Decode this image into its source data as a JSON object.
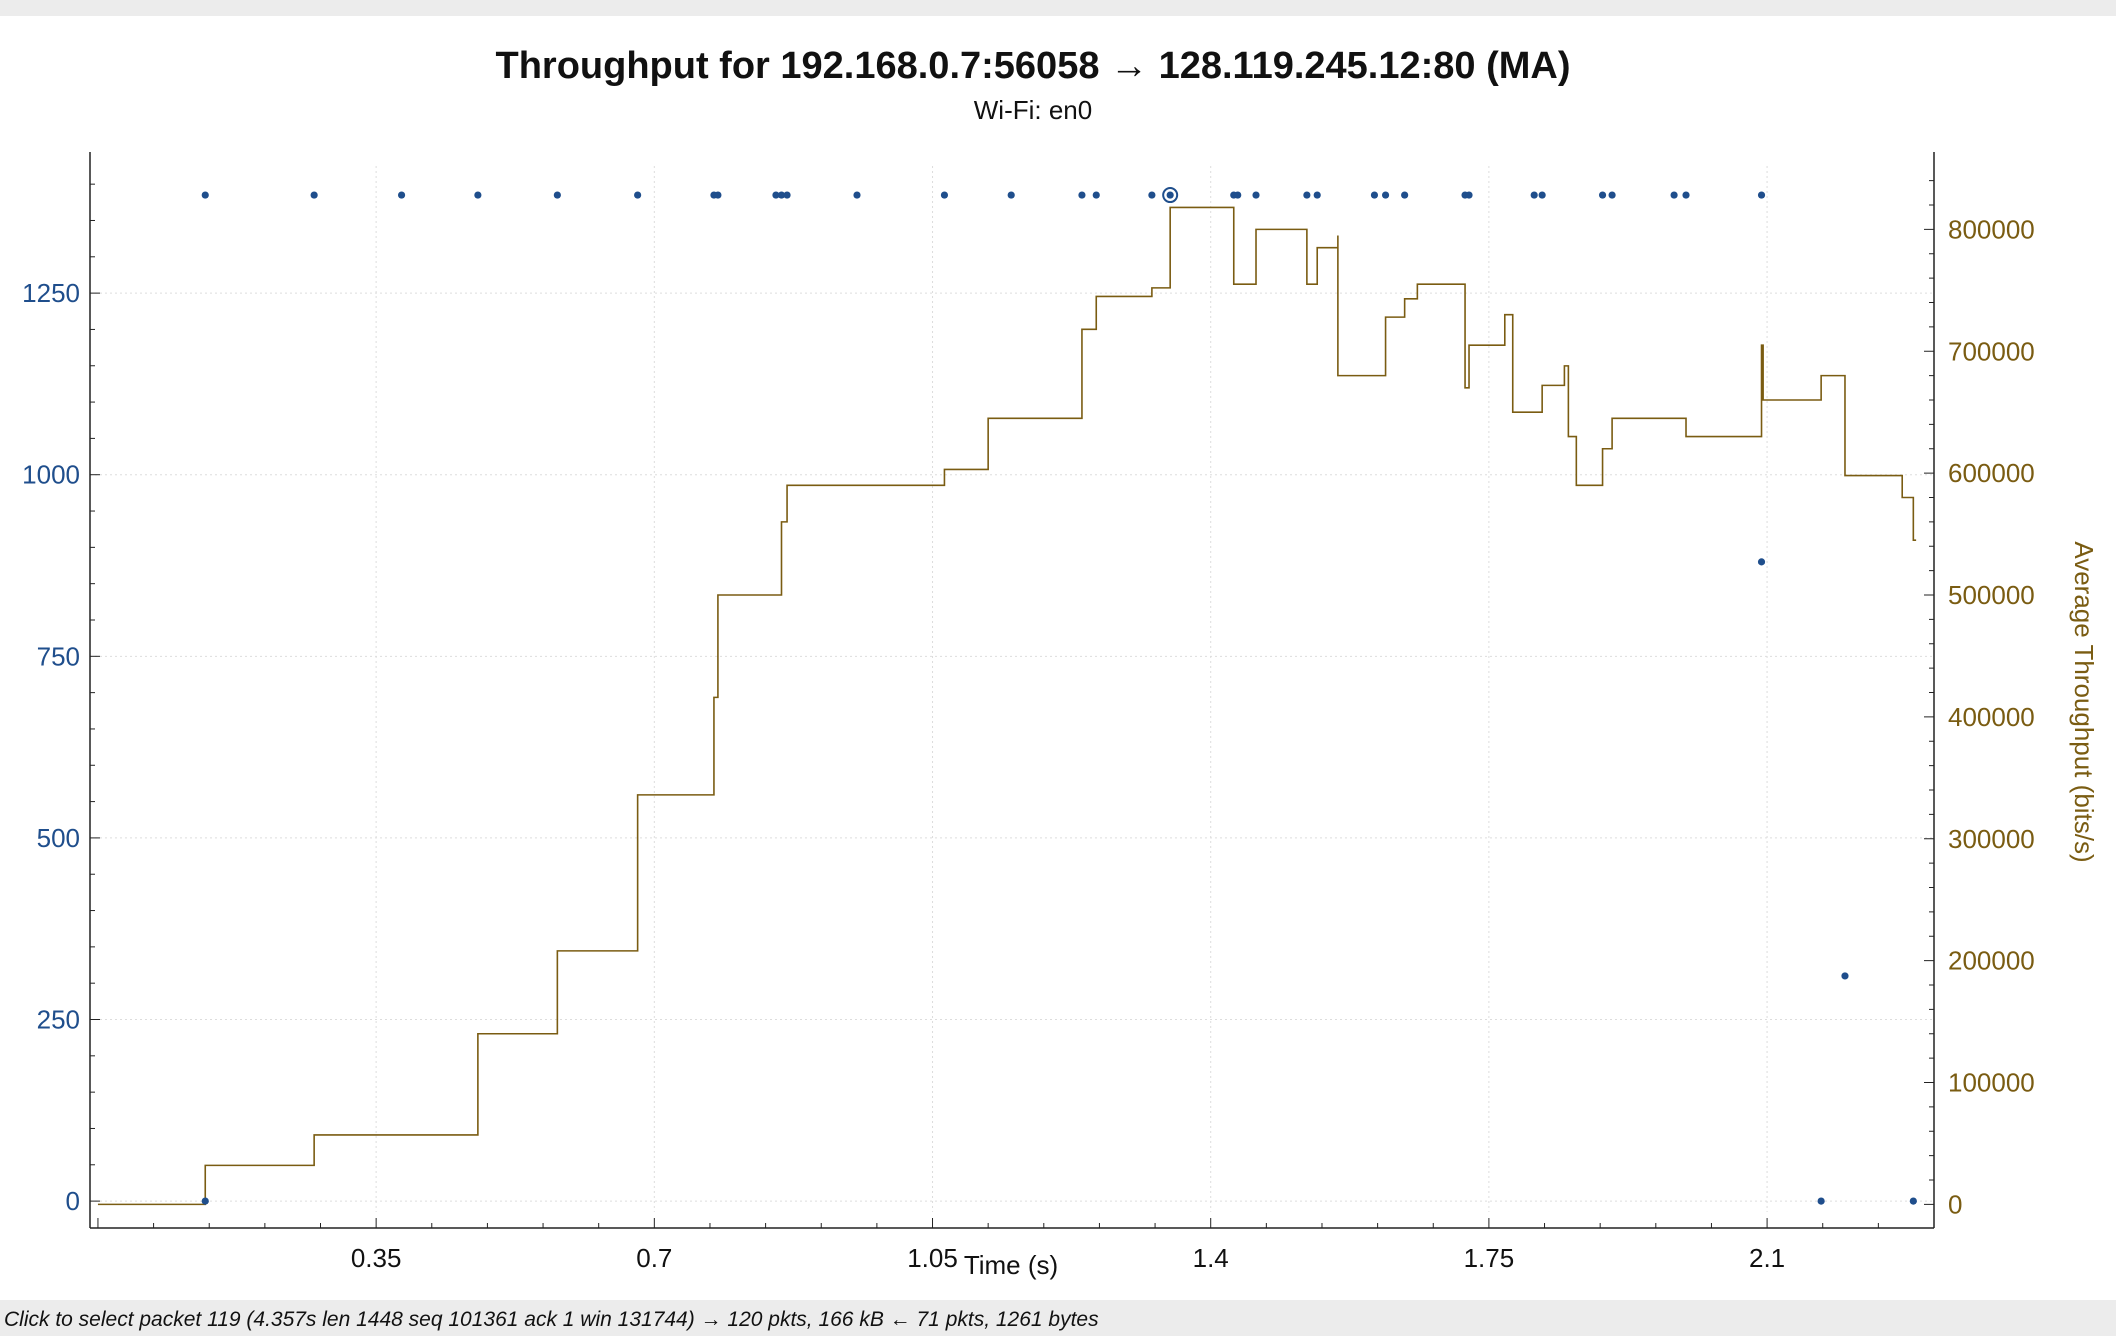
{
  "window": {
    "status_text": "Click to select packet 119 (4.357s len 1448 seq 101361 ack 1 win 131744) → 120 pkts, 166 kB ← 71 pkts, 1261 bytes"
  },
  "colors": {
    "segment_points": "#1f4e8c",
    "throughput_line": "#7a5c12",
    "left_axis_text": "#1f4e8c",
    "right_axis_text": "#7a5c12",
    "grid": "#dddddd"
  },
  "chart_data": {
    "type": "line",
    "title": "Throughput for 192.168.0.7:56058 → 128.119.245.12:80 (MA)",
    "subtitle": "Wi-Fi: en0",
    "xlabel": "Time (s)",
    "ylabel_left": "",
    "ylabel_right": "Average Throughput (bits/s)",
    "xlim": [
      -0.01,
      2.31
    ],
    "ylim_left": [
      -15,
      1425
    ],
    "ylim_right": [
      -6250,
      852000
    ],
    "x_ticks": [
      0.35,
      0.7,
      1.05,
      1.4,
      1.75,
      2.1
    ],
    "x_tick_labels": [
      "0.35",
      "0.7",
      "1.05",
      "1.4",
      "1.75",
      "2.1"
    ],
    "y_left_ticks": [
      0,
      250,
      500,
      750,
      1000,
      1250
    ],
    "y_left_tick_labels": [
      "0",
      "250",
      "500",
      "750",
      "1000",
      "1250"
    ],
    "y_right_ticks": [
      0,
      100000,
      200000,
      300000,
      400000,
      500000,
      600000,
      700000,
      800000
    ],
    "y_right_tick_labels": [
      "0",
      "100000",
      "200000",
      "300000",
      "400000",
      "500000",
      "600000",
      "700000",
      "800000"
    ],
    "grid": true,
    "series": [
      {
        "axis": "left",
        "style": "points",
        "x": [
          0.135,
          0.272,
          0.382,
          0.478,
          0.578,
          0.679,
          0.775,
          0.78,
          0.853,
          0.86,
          0.867,
          0.955,
          1.065,
          1.149,
          1.238,
          1.256,
          1.326,
          1.349,
          1.429,
          1.434,
          1.457,
          1.521,
          1.534,
          1.606,
          1.62,
          1.644,
          1.72,
          1.725,
          1.807,
          1.817,
          1.893,
          1.905,
          1.983,
          1.998,
          2.093,
          2.093,
          2.168,
          2.198,
          2.284,
          0.135
        ],
        "y": [
          1385,
          1385,
          1385,
          1385,
          1385,
          1385,
          1385,
          1385,
          1385,
          1385,
          1385,
          1385,
          1385,
          1385,
          1385,
          1385,
          1385,
          1385,
          1385,
          1385,
          1385,
          1385,
          1385,
          1385,
          1385,
          1385,
          1385,
          1385,
          1385,
          1385,
          1385,
          1385,
          1385,
          1385,
          1385,
          880,
          0,
          310,
          0,
          0
        ],
        "highlight_index": 17
      },
      {
        "axis": "right",
        "style": "step",
        "x": [
          0.0,
          0.135,
          0.272,
          0.382,
          0.478,
          0.578,
          0.679,
          0.775,
          0.78,
          0.853,
          0.86,
          0.867,
          0.955,
          1.065,
          1.12,
          1.149,
          1.238,
          1.256,
          1.326,
          1.349,
          1.349,
          1.429,
          1.457,
          1.521,
          1.534,
          1.56,
          1.56,
          1.606,
          1.62,
          1.644,
          1.66,
          1.72,
          1.725,
          1.77,
          1.78,
          1.807,
          1.817,
          1.845,
          1.85,
          1.86,
          1.893,
          1.905,
          1.983,
          1.998,
          2.093,
          2.095,
          2.168,
          2.198,
          2.253,
          2.27,
          2.284
        ],
        "y": [
          0,
          32000,
          57000,
          57000,
          140000,
          208000,
          336000,
          416000,
          500000,
          500000,
          560000,
          590000,
          590000,
          603000,
          645000,
          645000,
          718000,
          745000,
          752000,
          818000,
          818000,
          755000,
          800000,
          755000,
          785000,
          795000,
          680000,
          680000,
          728000,
          743000,
          755000,
          670000,
          705000,
          730000,
          650000,
          650000,
          672000,
          688000,
          630000,
          590000,
          620000,
          645000,
          645000,
          630000,
          705000,
          660000,
          680000,
          598000,
          598000,
          580000,
          545000
        ]
      }
    ]
  }
}
